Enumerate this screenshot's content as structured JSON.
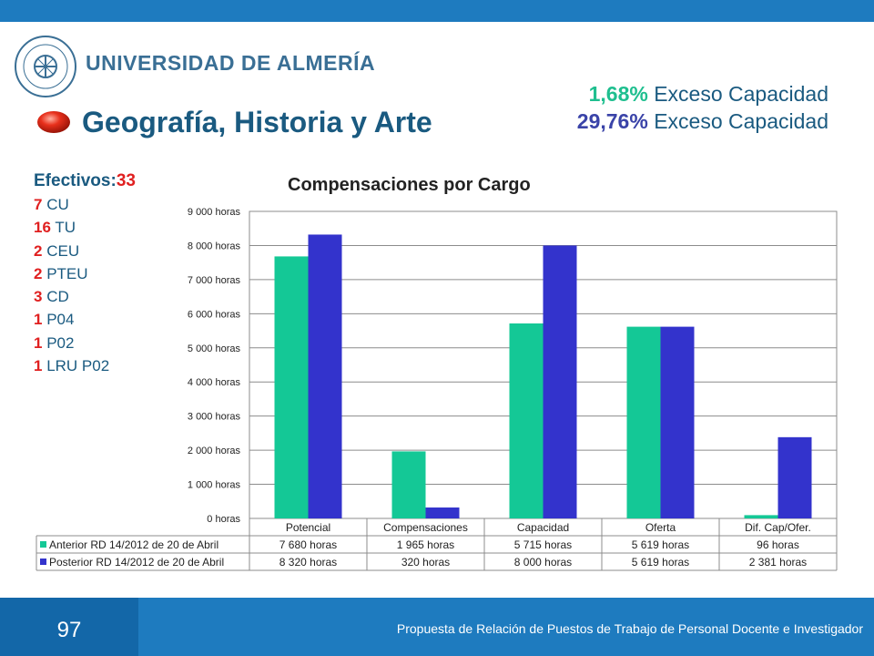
{
  "header": {
    "university": "UNIVERSIDAD DE ALMERÍA",
    "title": "Geografía, Historia y Arte"
  },
  "excess": [
    {
      "pct": "1,68%",
      "label": "Exceso Capacidad"
    },
    {
      "pct": "29,76%",
      "label": "Exceso Capacidad"
    }
  ],
  "staff": {
    "head_label": "Efectivos:",
    "head_count": "33",
    "items": [
      {
        "count": "7",
        "label": "CU"
      },
      {
        "count": "16",
        "label": "TU"
      },
      {
        "count": "2",
        "label": "CEU"
      },
      {
        "count": "2",
        "label": "PTEU"
      },
      {
        "count": "3",
        "label": "CD"
      },
      {
        "count": "1",
        "label": "P04"
      },
      {
        "count": "1",
        "label": "P02"
      },
      {
        "count": "1",
        "label": "LRU P02"
      }
    ]
  },
  "colors": {
    "series1": "#14c896",
    "series2": "#3333cc",
    "brand": "#1e7bbf"
  },
  "chart_data": {
    "type": "bar",
    "title": "Compensaciones por Cargo",
    "categories": [
      "Potencial",
      "Compensaciones",
      "Capacidad",
      "Oferta",
      "Dif. Cap/Ofer."
    ],
    "y_ticks": [
      "0 horas",
      "1 000 horas",
      "2 000 horas",
      "3 000 horas",
      "4 000 horas",
      "5 000 horas",
      "6 000 horas",
      "7 000 horas",
      "8 000 horas",
      "9 000 horas"
    ],
    "ylim": [
      0,
      9000
    ],
    "series": [
      {
        "name": "Anterior RD 14/2012 de 20 de Abril",
        "values": [
          7680,
          1965,
          5715,
          5619,
          96
        ],
        "labels": [
          "7 680 horas",
          "1 965 horas",
          "5 715 horas",
          "5 619 horas",
          "96 horas"
        ]
      },
      {
        "name": "Posterior RD 14/2012 de 20 de Abril",
        "values": [
          8320,
          320,
          8000,
          5619,
          2381
        ],
        "labels": [
          "8 320 horas",
          "320 horas",
          "8 000 horas",
          "5 619 horas",
          "2 381 horas"
        ]
      }
    ],
    "legend": "data-table"
  },
  "footer": {
    "page_number": "97",
    "text": "Propuesta de Relación de Puestos de Trabajo de Personal Docente e Investigador"
  }
}
